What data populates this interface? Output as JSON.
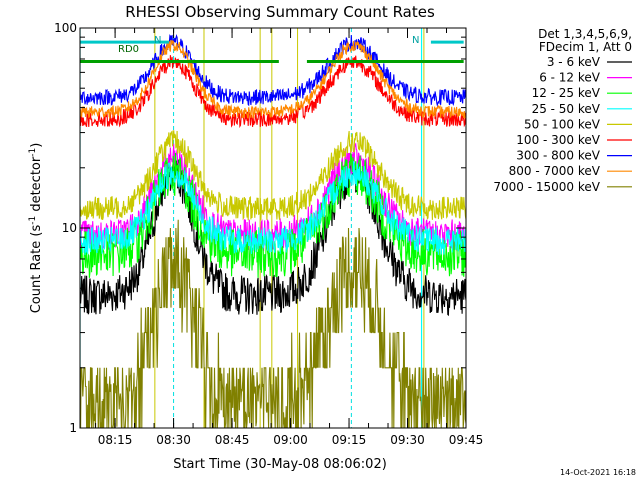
{
  "chart_data": {
    "type": "line",
    "title": "RHESSI Observing Summary Count Rates",
    "xlabel": "Start Time (30-May-08 08:06:02)",
    "ylabel": "Count Rate (s",
    "ylabel_sup": "-1",
    "ylabel_tail": " detector",
    "ylabel_close": ")",
    "yscale": "log",
    "ylim": [
      1,
      100
    ],
    "xlim_minutes": [
      8.1,
      9.75
    ],
    "x_ticks": [
      "08:15",
      "08:30",
      "08:45",
      "09:00",
      "09:15",
      "09:30",
      "09:45"
    ],
    "y_ticks": [
      "1",
      "10",
      "100"
    ],
    "timestamp": "14-Oct-2021 16:18",
    "legend_position": "right",
    "legend_header": [
      "Det 1,3,4,5,6,9,",
      "FDecim 1, Att 0"
    ],
    "flags": {
      "rd0": "RD0",
      "n_left": "N",
      "n_right": "N",
      "bars": [
        {
          "color": "#00c8c8",
          "y": 85,
          "ranges": [
            [
              8.1,
              8.48
            ],
            [
              9.6,
              9.74
            ]
          ]
        },
        {
          "color": "#00a000",
          "y": 68,
          "ranges": [
            [
              8.1,
              8.95
            ],
            [
              9.07,
              9.74
            ]
          ]
        }
      ]
    },
    "vlines": {
      "solid_cyan": [
        8.1,
        9.56
      ],
      "dashed_cyan": [
        8.5,
        9.26,
        9.75
      ],
      "yellow": [
        8.42,
        8.63,
        8.87,
        8.92,
        9.03,
        9.57
      ]
    },
    "series": [
      {
        "name": "3 - 6 keV",
        "color": "#000000",
        "base": 4.6,
        "peak": 19,
        "noise": 0.05
      },
      {
        "name": "6 - 12 keV",
        "color": "#ff00ff",
        "base": 9.2,
        "peak": 22,
        "noise": 0.04
      },
      {
        "name": "12 - 25 keV",
        "color": "#00ff00",
        "base": 7.4,
        "peak": 19,
        "noise": 0.06
      },
      {
        "name": "25 - 50 keV",
        "color": "#00ffff",
        "base": 8.6,
        "peak": 19,
        "noise": 0.035
      },
      {
        "name": "50 - 100 keV",
        "color": "#c8c800",
        "base": 12.5,
        "peak": 27,
        "noise": 0.03
      },
      {
        "name": "100 - 300 keV",
        "color": "#ff0000",
        "base": 35,
        "peak": 68,
        "noise": 0.02
      },
      {
        "name": "300 - 800 keV",
        "color": "#0000ff",
        "base": 45,
        "peak": 85,
        "noise": 0.02
      },
      {
        "name": "800 - 7000 keV",
        "color": "#ff8800",
        "base": 38,
        "peak": 82,
        "noise": 0.015
      },
      {
        "name": "7000 - 15000 keV",
        "color": "#808000",
        "base": 1.4,
        "peak": 6.5,
        "noise": 0.12
      }
    ]
  }
}
